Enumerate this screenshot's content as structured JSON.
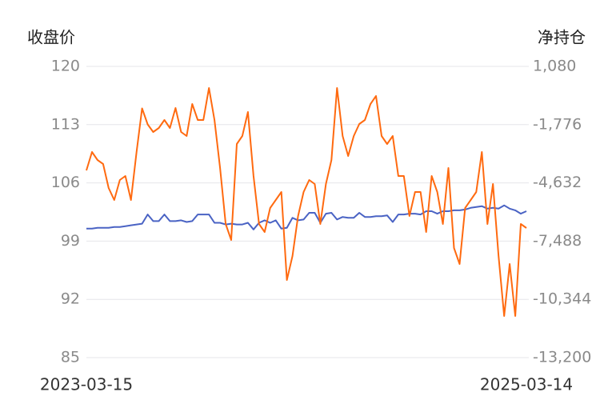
{
  "chart_data": {
    "type": "line",
    "ylabel": "收盘价",
    "y2label": "净持仓",
    "categories": [
      "2023-03-15",
      null,
      null,
      null,
      null,
      null,
      null,
      null,
      null,
      null,
      null,
      null,
      null,
      null,
      null,
      null,
      null,
      null,
      null,
      null,
      null,
      null,
      null,
      null,
      null,
      null,
      null,
      null,
      null,
      null,
      null,
      null,
      null,
      null,
      null,
      null,
      null,
      null,
      null,
      null,
      null,
      null,
      null,
      null,
      null,
      null,
      null,
      null,
      null,
      null,
      null,
      null,
      null,
      null,
      null,
      null,
      null,
      null,
      null,
      null,
      null,
      null,
      null,
      null,
      null,
      null,
      null,
      null,
      null,
      null,
      null,
      null,
      null,
      null,
      null,
      null,
      null,
      null,
      null,
      "2025-03-14"
    ],
    "ylim": [
      85,
      120
    ],
    "yticks": [
      85,
      92,
      99,
      106,
      113,
      120
    ],
    "y2lim": [
      -13200,
      1080
    ],
    "y2ticks": [
      {
        "value": -13200,
        "label": "-13,200"
      },
      {
        "value": -10344,
        "label": "-10,344"
      },
      {
        "value": -7488,
        "label": "-7,488"
      },
      {
        "value": -4632,
        "label": "-4,632"
      },
      {
        "value": -1776,
        "label": "-1,776"
      },
      {
        "value": 1080,
        "label": "1,080"
      }
    ],
    "grid": true,
    "series": [
      {
        "color": "#4a63c4",
        "axis": "y",
        "values": [
          100.5,
          100.5,
          100.6,
          100.6,
          100.6,
          100.7,
          100.7,
          100.8,
          100.9,
          101.0,
          101.1,
          102.2,
          101.4,
          101.4,
          102.2,
          101.4,
          101.4,
          101.5,
          101.3,
          101.4,
          102.2,
          102.2,
          102.2,
          101.2,
          101.2,
          101.0,
          101.1,
          101.0,
          101.0,
          101.2,
          100.4,
          101.2,
          101.5,
          101.2,
          101.5,
          100.5,
          100.6,
          101.8,
          101.5,
          101.6,
          102.4,
          102.4,
          101.2,
          102.3,
          102.4,
          101.6,
          101.9,
          101.8,
          101.8,
          102.4,
          101.9,
          101.9,
          102.0,
          102.0,
          102.1,
          101.3,
          102.2,
          102.2,
          102.3,
          102.3,
          102.2,
          102.6,
          102.6,
          102.3,
          102.6,
          102.6,
          102.7,
          102.7,
          102.8,
          103.0,
          103.1,
          103.2,
          102.9,
          103.0,
          102.9,
          103.3,
          102.9,
          102.7,
          102.3,
          102.6
        ]
      },
      {
        "color": "#ff6a10",
        "axis": "y2",
        "values": [
          -4020,
          -3118,
          -3510,
          -3706,
          -4883,
          -5471,
          -4491,
          -4295,
          -5471,
          -3118,
          -979,
          -1764,
          -2137,
          -1941,
          -1548,
          -1941,
          -960,
          -2137,
          -2333,
          -764,
          -1548,
          -1548,
          21,
          -1548,
          -3902,
          -6648,
          -7433,
          -2725,
          -2333,
          -1156,
          -4295,
          -6648,
          -7041,
          -5864,
          -5471,
          -5079,
          -9394,
          -8218,
          -6256,
          -5079,
          -4491,
          -4687,
          -6648,
          -4687,
          -3510,
          21,
          -2333,
          -3314,
          -2333,
          -1745,
          -1548,
          -764,
          -372,
          -2333,
          -2725,
          -2333,
          -4295,
          -4295,
          -6256,
          -5079,
          -5079,
          -7041,
          -4295,
          -5079,
          -6648,
          -3902,
          -7825,
          -8610,
          -5864,
          -5471,
          -5079,
          -3118,
          -6648,
          -4687,
          -8218,
          -11160,
          -8610,
          -11160,
          -6648,
          -6844
        ]
      }
    ]
  }
}
